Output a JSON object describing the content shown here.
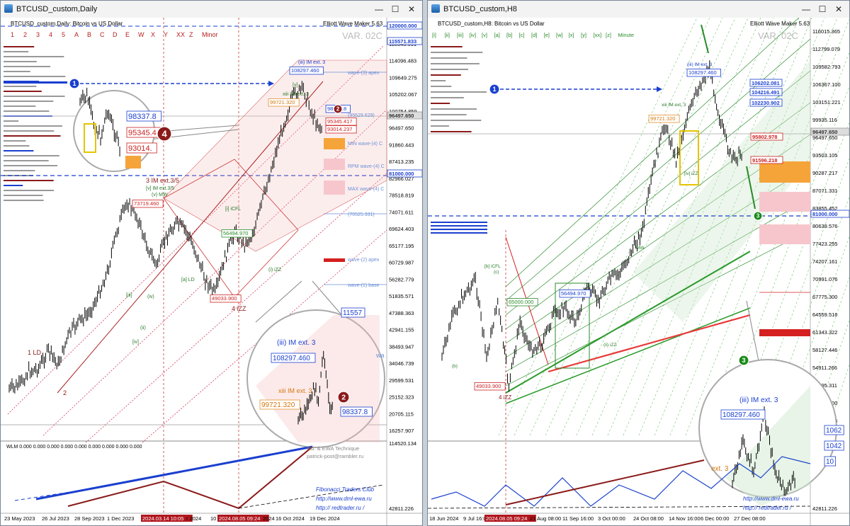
{
  "windows": [
    {
      "id": "left",
      "title": "BTCUSD_custom,Daily",
      "subtitle": "BTCUSD_custom,Daily: Bitcoin vs US Dollar",
      "indicator": "Elliott Wave Maker 5.63",
      "variant": "VAR. 02C",
      "degree_labels": [
        "1",
        "2",
        "3",
        "4",
        "5",
        "A",
        "B",
        "C",
        "D",
        "E",
        "W",
        "X",
        "Y",
        "XX",
        "Z",
        "Minor"
      ],
      "price_axis": [
        "120000.000",
        "118543.691",
        "114096.483",
        "109649.275",
        "105202.067",
        "100754.859",
        "96497.650",
        "91860.443",
        "87413.235",
        "82966.027",
        "78518.819",
        "74071.611",
        "69624.403",
        "65177.195",
        "60729.987",
        "56282.779",
        "51835.571",
        "47388.363",
        "42941.155",
        "38493.947",
        "34046.739",
        "29599.531",
        "25152.323",
        "20705.115",
        "16257.907",
        "114520.134",
        "42811.226"
      ],
      "price_boxes": [
        {
          "text": "120000.000",
          "kind": "blue"
        },
        {
          "text": "115571.833",
          "kind": "blue"
        },
        {
          "text": "96497.650",
          "kind": "gray"
        },
        {
          "text": "81000.000",
          "kind": "blue"
        }
      ],
      "date_axis": [
        "23 May 2023",
        "26 Jul 2023",
        "28 Sep 2023",
        "1 Dec 2023",
        "2024.03.14 10:05",
        "r 2024",
        "10 J",
        "2024.08.05 09:24",
        "2024",
        "16 Oct 2024",
        "19 Dec 2024"
      ],
      "wave_labels": [
        "1 LD",
        "2",
        "3 IM ext.3/5",
        "[v] IM ext.3/5",
        "(v) MW",
        "4 iZZ",
        "[a] LD",
        "(iii) IM ext. 3",
        "xiii IM ext. 3",
        "(i) iZZ",
        "[v]",
        "[iii]",
        "[iv]",
        "(ii)",
        "(iv)",
        "[i] iCFL"
      ],
      "box_labels": [
        "108297.460",
        "99721.320",
        "98337.8",
        "95345.417",
        "93014.237",
        "73719.460",
        "49033.900",
        "65000.00",
        "56494.970"
      ],
      "zone_labels": [
        "wave-(3) apex",
        "(95629.629)",
        "MIN wave-(4) C",
        "RPM wave-(4) C",
        "MAX wave-(4) C",
        "(70525.331)",
        "wave-(2) apex",
        "wave-(1) base"
      ],
      "markers": [
        {
          "n": "1",
          "color": "#1a3fcf"
        },
        {
          "n": "2",
          "color": "#8b1a1a"
        },
        {
          "n": "4",
          "color": "#8b1a1a"
        }
      ],
      "zoom_top": {
        "labels": [
          "98337.8",
          "95345.4",
          "93014."
        ],
        "badge": "4"
      },
      "zoom_bottom": {
        "labels": [
          "(iii) IM ext. 3",
          "108297.460",
          "xiii IM ext. 3",
          "99721.320",
          "98337.8",
          "11557",
          "wa"
        ],
        "badge": "2"
      },
      "subwindow": {
        "wlm": "WLM 0.000 0.000 0.000 0.000 0.000 0.000 0.000 0.000 0.000",
        "axis_top": "114520.134",
        "axis_bottom": "42811.226",
        "credits": [
          "Fib. & EWA Technique",
          "patrick-post@rambler.ru",
          "Fibonacci   Traders   Club",
          "http://www.dml-ewa.ru",
          "http:// redtrader.ru /"
        ]
      }
    },
    {
      "id": "right",
      "title": "BTCUSD_custom,H8",
      "subtitle": "BTCUSD_custom,H8: Bitcoin vs US Dollar",
      "indicator": "Elliott Wave Maker 5.63",
      "variant": "VAR. 02C",
      "degree_labels": [
        "[i]",
        "[ii]",
        "[iii]",
        "[iv]",
        "[v]",
        "[a]",
        "[b]",
        "[c]",
        "[d]",
        "[e]",
        "[w]",
        "[x]",
        "[y]",
        "[xx]",
        "[z]",
        "Minute"
      ],
      "price_axis": [
        "116015.365",
        "112799.079",
        "109582.793",
        "106367.100",
        "103151.221",
        "99935.116",
        "96497.650",
        "93503.105",
        "90287.217",
        "87071.331",
        "83855.452",
        "80639.576",
        "77423.255",
        "74207.161",
        "70991.076",
        "67775.300",
        "64559.516",
        "61343.322",
        "58127.446",
        "54911.266",
        "51695.311",
        "48479.200",
        "45263.136",
        "42811.226"
      ],
      "price_boxes": [
        {
          "text": "106202.081",
          "kind": "blue"
        },
        {
          "text": "104216.491",
          "kind": "blue"
        },
        {
          "text": "102230.902",
          "kind": "blue"
        },
        {
          "text": "96497.650",
          "kind": "gray"
        },
        {
          "text": "95802.978",
          "kind": "red"
        },
        {
          "text": "91596.218",
          "kind": "red"
        },
        {
          "text": "81000.000",
          "kind": "blue"
        }
      ],
      "date_axis": [
        "18 Jun 2024",
        "9 Jul 16:00",
        "2024.08.05 09:24",
        "21 Aug 08:00",
        "11 Sep 16:00",
        "3 Oct 00:00",
        "24 Oct 08:00",
        "14 Nov 16:00",
        "6 Dec 00:00",
        "27 Dec 08:00"
      ],
      "wave_labels": [
        "(iii) IM ext. 3",
        "xiii IM ext. 3",
        "[b] iCFL",
        "(c)",
        "(b)",
        "4 iZZ",
        "(ii) iZZ",
        "MW",
        "[iv] iZZ"
      ],
      "box_labels": [
        "108297.460",
        "99721.320",
        "65000.000",
        "56494.970",
        "49033.900"
      ],
      "markers": [
        {
          "n": "1",
          "color": "#1a3fcf"
        },
        {
          "n": "3",
          "color": "#1a8a1a"
        },
        {
          "n": "3",
          "color": "#1a8a1a"
        }
      ],
      "zoom_bottom": {
        "labels": [
          "(iii) IM ext. 3",
          "108297.460",
          "ext. 3",
          "1062",
          "1042",
          "10"
        ],
        "badge": "3"
      },
      "subwindow": {
        "credits": [
          "http://www.dml-ewa.ru",
          "http:// redtrader.ru /"
        ]
      }
    }
  ],
  "colors": {
    "blue": "#1a3fcf",
    "red": "#d42020",
    "darkred": "#8b1a1a",
    "green": "#1e8a1e",
    "orange": "#f5a43a",
    "pink": "#f6c6cc",
    "gray": "#9aa3ad"
  }
}
